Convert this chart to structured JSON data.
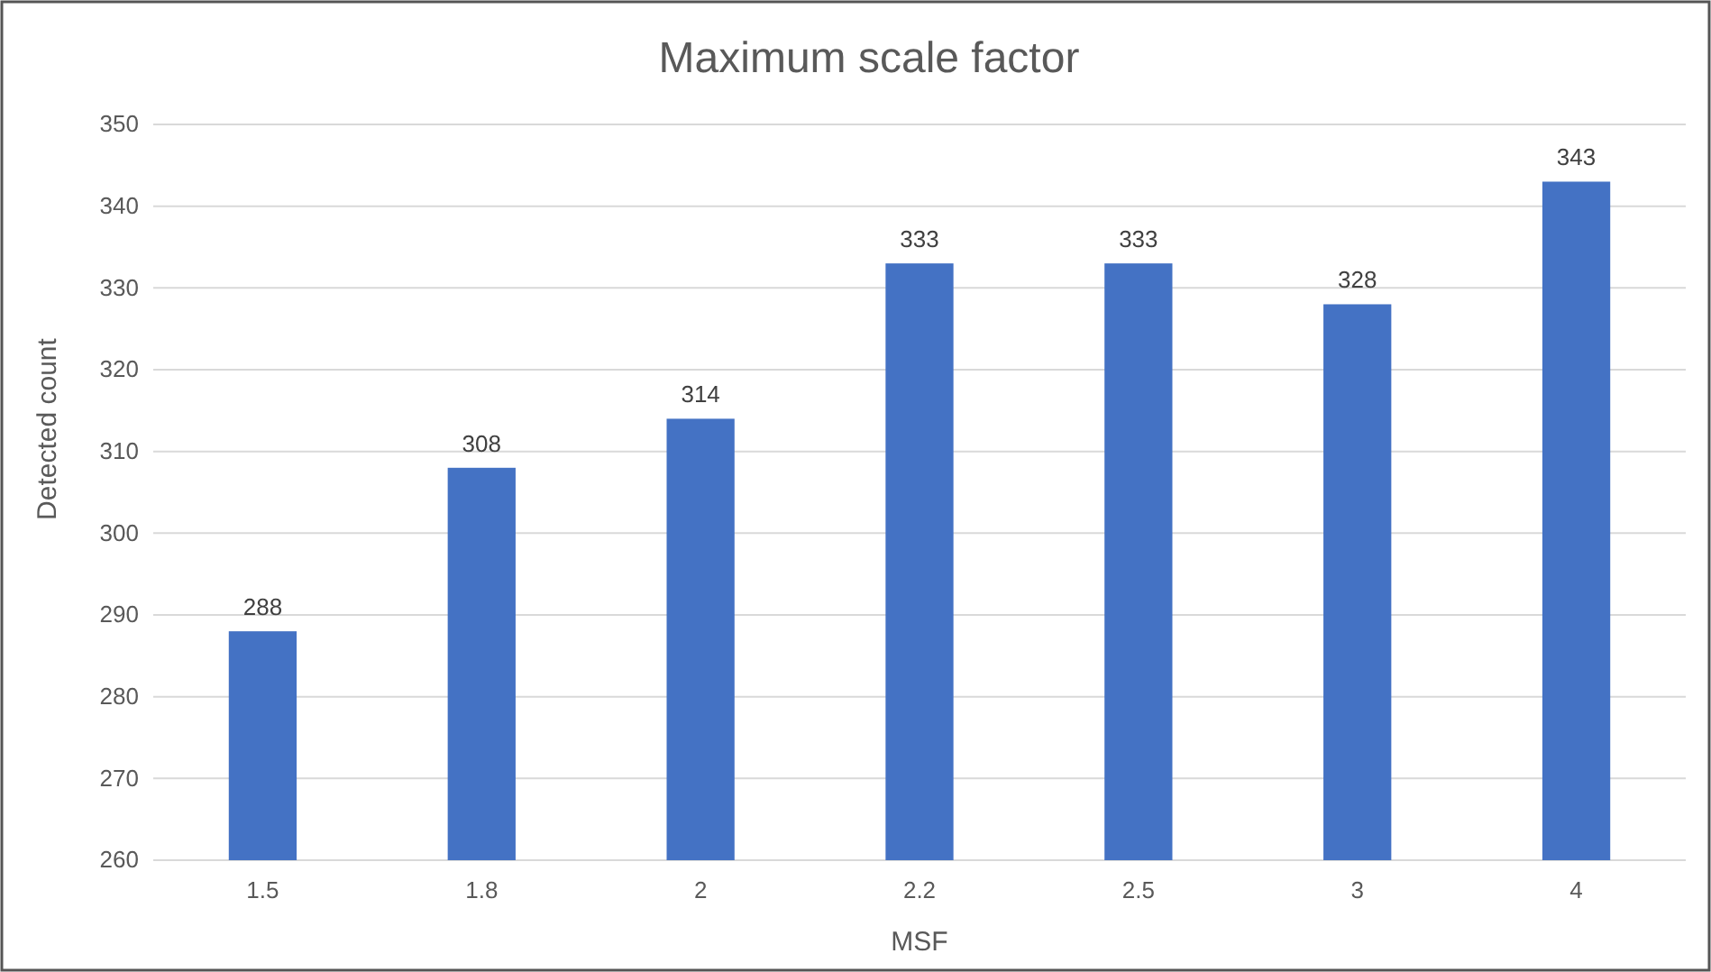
{
  "chart_data": {
    "type": "bar",
    "title": "Maximum scale factor",
    "xlabel": "MSF",
    "ylabel": "Detected count",
    "categories": [
      "1.5",
      "1.8",
      "2",
      "2.2",
      "2.5",
      "3",
      "4"
    ],
    "values": [
      288,
      308,
      314,
      333,
      333,
      328,
      343
    ],
    "color": "#4472c4",
    "ylim": [
      260,
      350
    ],
    "yticks": [
      260,
      270,
      280,
      290,
      300,
      310,
      320,
      330,
      340,
      350
    ],
    "grid": "y",
    "data_labels": true
  }
}
